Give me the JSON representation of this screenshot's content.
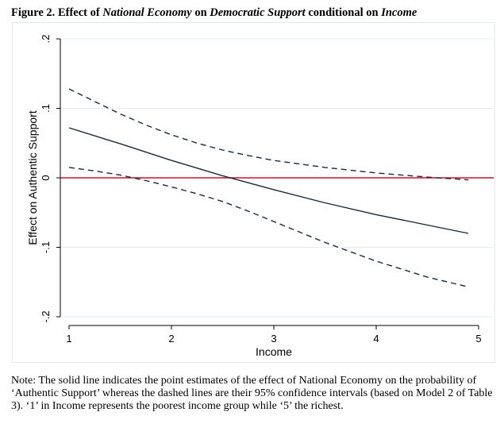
{
  "figure": {
    "label": "Figure 2.",
    "title_part1": " Effect of ",
    "title_var1": "National Economy",
    "title_part2": " on ",
    "title_var2": "Democratic Support",
    "title_part3": " conditional on ",
    "title_var3": "Income"
  },
  "chart_data": {
    "type": "line",
    "xlabel": "Income",
    "ylabel": "Effect on Authentic Support",
    "xlim": [
      1,
      5
    ],
    "ylim": [
      -0.2,
      0.2
    ],
    "x_ticks": [
      1,
      2,
      3,
      4,
      5
    ],
    "x_tick_labels": [
      "1",
      "2",
      "3",
      "4",
      "5"
    ],
    "y_ticks": [
      -0.2,
      -0.1,
      0,
      0.1,
      0.2
    ],
    "y_tick_labels": [
      "-.2",
      "-.1",
      "0",
      ".1",
      ".2"
    ],
    "grid": true,
    "reference_line": {
      "y": 0,
      "color": "#c8102e"
    },
    "series": [
      {
        "style": "solid",
        "x": [
          1.0,
          1.5,
          2.0,
          2.5,
          3.0,
          3.5,
          4.0,
          4.5,
          4.9
        ],
        "values": [
          0.072,
          0.049,
          0.025,
          0.003,
          -0.017,
          -0.036,
          -0.053,
          -0.068,
          -0.08
        ]
      },
      {
        "style": "dashed",
        "x": [
          1.0,
          1.25,
          1.5,
          1.75,
          2.0,
          2.25,
          2.5,
          2.75,
          3.0,
          3.5,
          4.0,
          4.5,
          4.9
        ],
        "values": [
          0.128,
          0.11,
          0.092,
          0.076,
          0.062,
          0.05,
          0.04,
          0.032,
          0.025,
          0.015,
          0.007,
          0.001,
          -0.003
        ]
      },
      {
        "style": "dashed",
        "x": [
          1.0,
          1.25,
          1.5,
          1.75,
          2.0,
          2.25,
          2.5,
          2.75,
          3.0,
          3.5,
          4.0,
          4.5,
          4.9
        ],
        "values": [
          0.015,
          0.01,
          0.004,
          -0.004,
          -0.013,
          -0.023,
          -0.034,
          -0.048,
          -0.063,
          -0.093,
          -0.12,
          -0.143,
          -0.157
        ]
      }
    ],
    "line_color": "#1a2a3a"
  },
  "note": "Note: The solid line indicates the point estimates of the effect of National Economy on the probability of ‘Authentic Support’ whereas the dashed lines are their 95% confidence intervals (based on Model 2 of Table 3). ‘1’ in Income represents the poorest income group while ‘5’ the richest."
}
